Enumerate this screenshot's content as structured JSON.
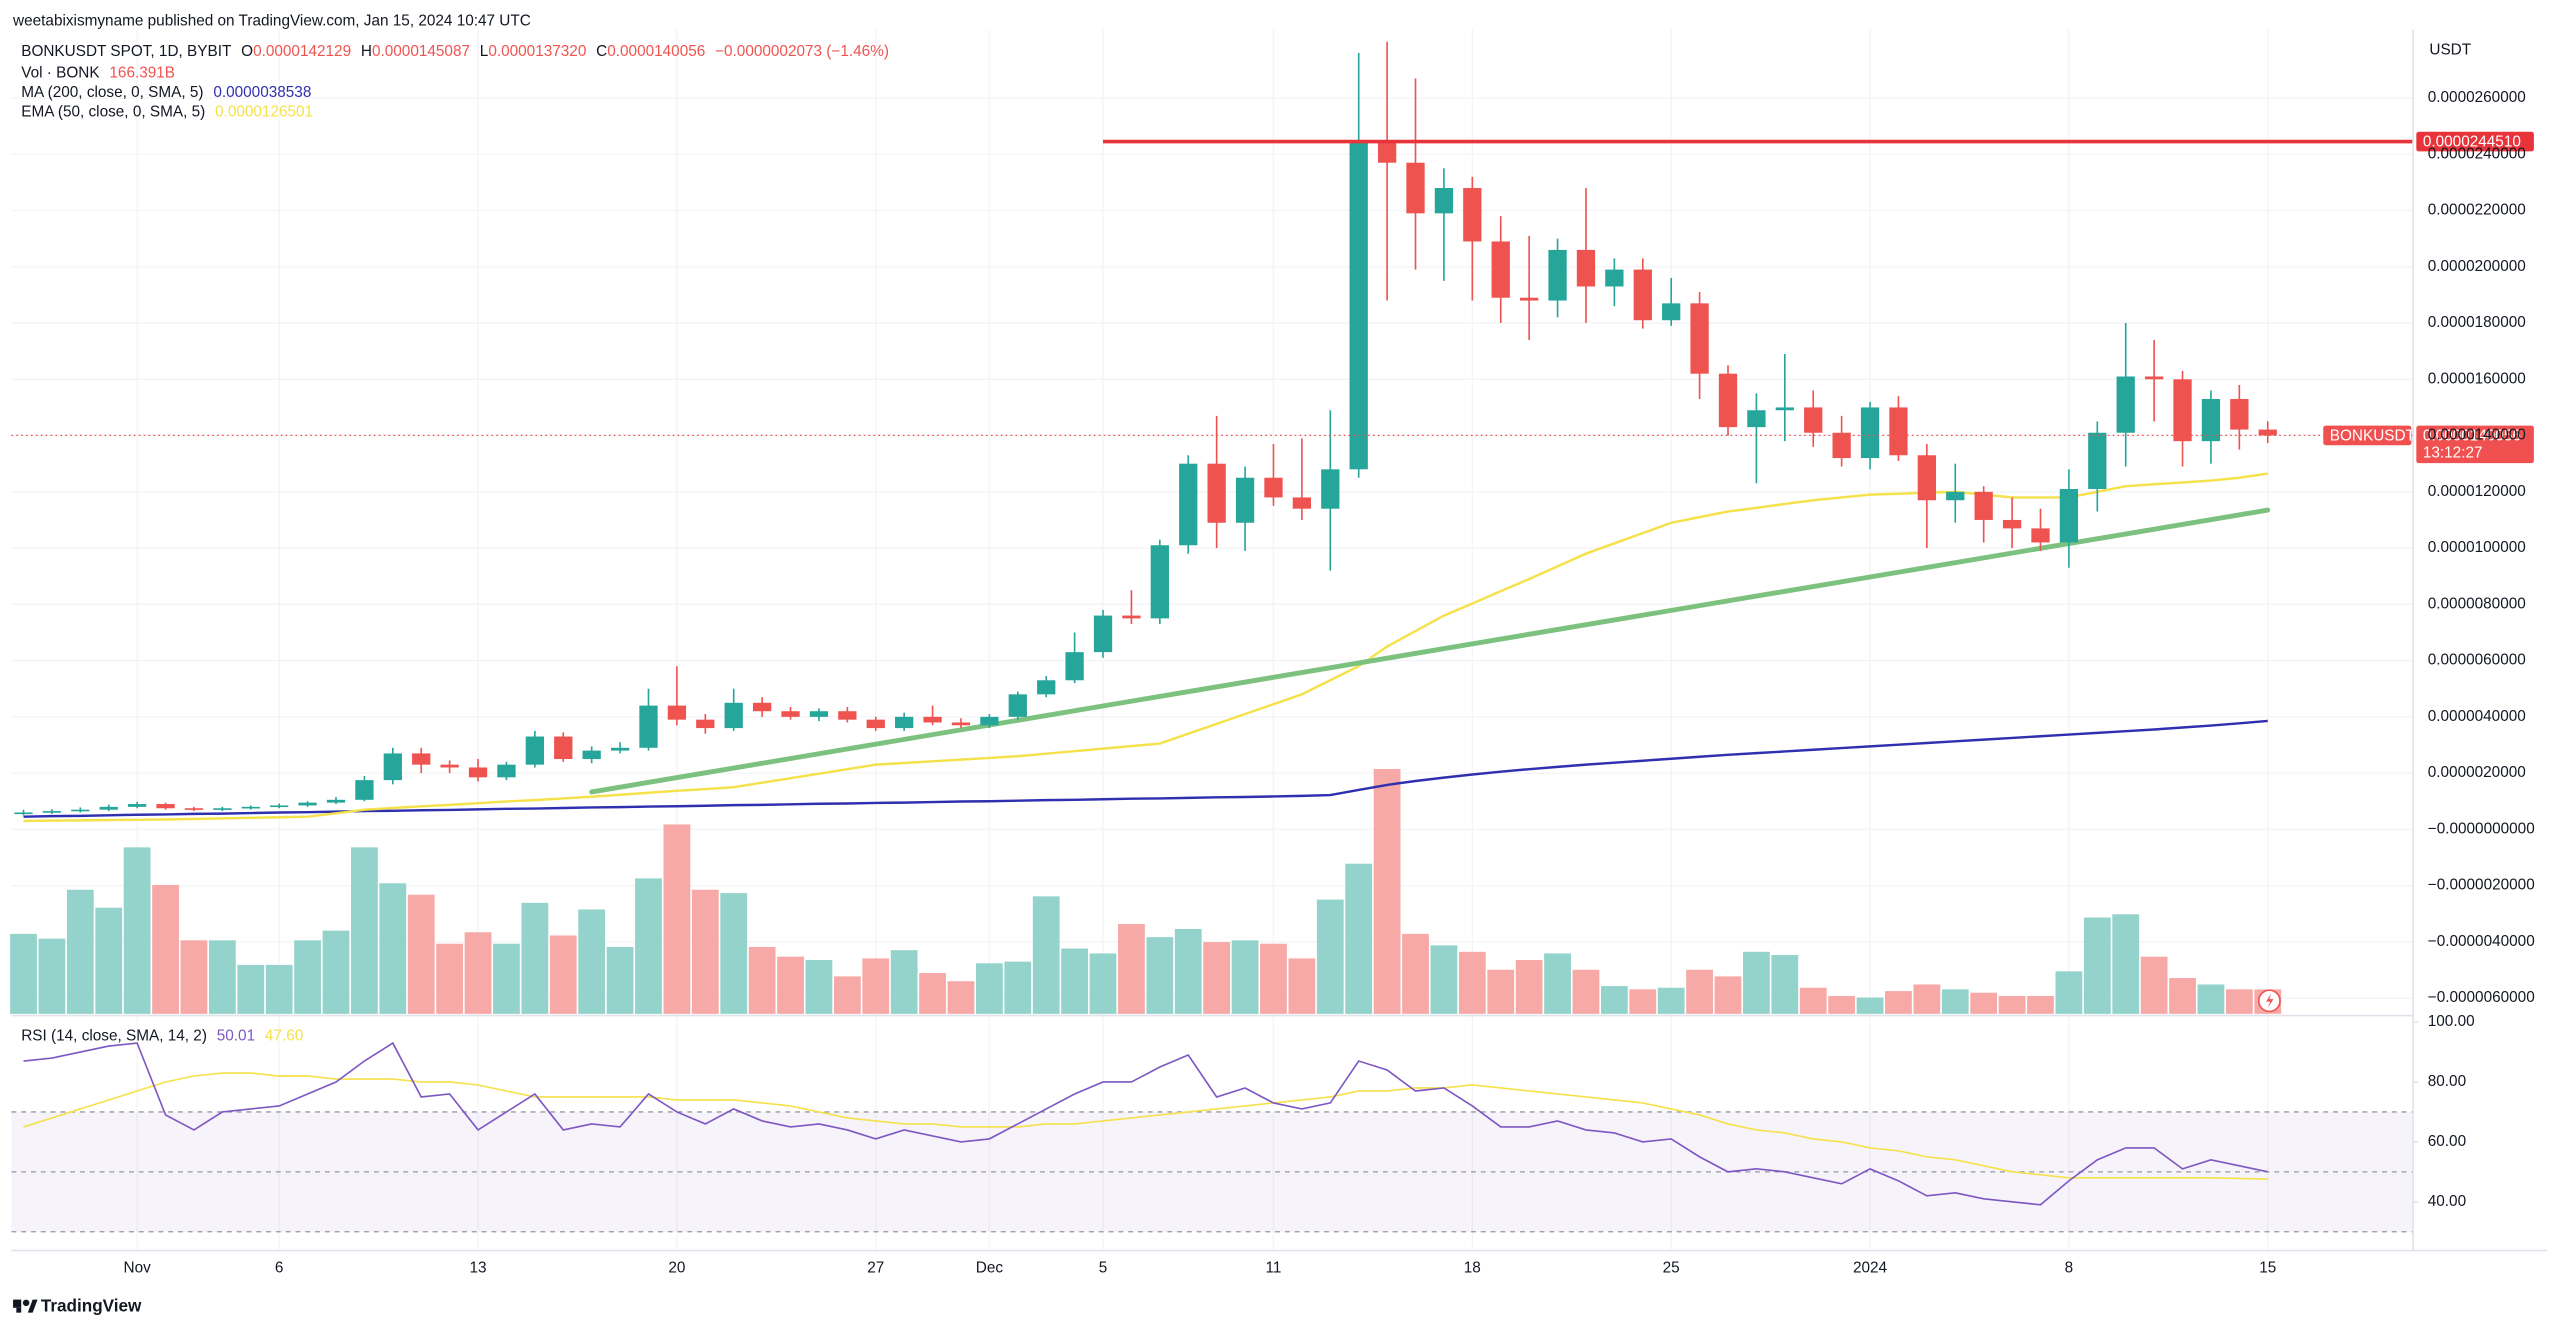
{
  "header": {
    "publisher": "weetabixismyname published on TradingView.com, Jan 15, 2024 10:47 UTC"
  },
  "footer": {
    "brand": "TradingView"
  },
  "chart_data": [
    {
      "type": "candlestick",
      "symbol": "BONKUSDT SPOT, 1D, BYBIT",
      "ohlc_legend": [
        [
          "O",
          "0.0000142129"
        ],
        [
          "H",
          "0.0000145087"
        ],
        [
          "L",
          "0.0000137320"
        ],
        [
          "C",
          "0.0000140056"
        ]
      ],
      "change_label": "−0.0000002073 (−1.46%)",
      "currency": "USDT",
      "categories": [
        null,
        null,
        null,
        null,
        "Nov",
        null,
        null,
        null,
        null,
        "6",
        null,
        null,
        null,
        null,
        null,
        null,
        "13",
        null,
        null,
        null,
        null,
        null,
        null,
        "20",
        null,
        null,
        null,
        null,
        null,
        null,
        "27",
        null,
        null,
        null,
        "Dec",
        null,
        null,
        null,
        "5",
        null,
        null,
        null,
        null,
        null,
        "11",
        null,
        null,
        null,
        null,
        null,
        null,
        "18",
        null,
        null,
        null,
        null,
        null,
        null,
        "25",
        null,
        null,
        null,
        null,
        null,
        null,
        "2024",
        null,
        null,
        null,
        null,
        null,
        null,
        "8",
        null,
        null,
        null,
        null,
        null,
        null,
        "15"
      ],
      "open": [
        5.5e-07,
        6e-07,
        6.5e-07,
        7e-07,
        8e-07,
        9e-07,
        7.5e-07,
        7e-07,
        7.5e-07,
        8e-07,
        8.5e-07,
        9.5e-07,
        1.05e-06,
        1.75e-06,
        2.7e-06,
        2.3e-06,
        2.2e-06,
        1.85e-06,
        2.3e-06,
        3.3e-06,
        2.5e-06,
        2.8e-06,
        2.9e-06,
        4.4e-06,
        3.9e-06,
        3.6e-06,
        4.5e-06,
        4.2e-06,
        4e-06,
        4.2e-06,
        3.9e-06,
        3.6e-06,
        4e-06,
        3.8e-06,
        3.7e-06,
        4e-06,
        4.8e-06,
        5.3e-06,
        6.3e-06,
        7.6e-06,
        7.5e-06,
        1.01e-05,
        1.3e-05,
        1.09e-05,
        1.25e-05,
        1.18e-05,
        1.14e-05,
        1.28e-05,
        2.44e-05,
        2.37e-05,
        2.19e-05,
        2.28e-05,
        2.09e-05,
        1.89e-05,
        1.88e-05,
        2.06e-05,
        1.93e-05,
        1.99e-05,
        1.81e-05,
        1.87e-05,
        1.62e-05,
        1.43e-05,
        1.49e-05,
        1.5e-05,
        1.41e-05,
        1.32e-05,
        1.5e-05,
        1.33e-05,
        1.17e-05,
        1.2e-05,
        1.1e-05,
        1.07e-05,
        1.02e-05,
        1.21e-05,
        1.41e-05,
        1.61e-05,
        1.6e-05,
        1.38e-05,
        1.53e-05,
        1.42129e-05
      ],
      "high": [
        7e-07,
        7.2e-07,
        7.8e-07,
        8.8e-07,
        9.8e-07,
        9.5e-07,
        8e-07,
        8e-07,
        8.5e-07,
        9.2e-07,
        1e-06,
        1.15e-06,
        1.9e-06,
        2.9e-06,
        2.9e-06,
        2.45e-06,
        2.5e-06,
        2.4e-06,
        3.5e-06,
        3.45e-06,
        2.95e-06,
        3.1e-06,
        5e-06,
        5.8e-06,
        4.1e-06,
        5e-06,
        4.7e-06,
        4.35e-06,
        4.3e-06,
        4.35e-06,
        4e-06,
        4.15e-06,
        4.4e-06,
        3.95e-06,
        4.1e-06,
        4.9e-06,
        5.45e-06,
        7e-06,
        7.8e-06,
        8.5e-06,
        1.03e-05,
        1.33e-05,
        1.47e-05,
        1.29e-05,
        1.37e-05,
        1.39e-05,
        1.49e-05,
        2.76e-05,
        2.8e-05,
        2.67e-05,
        2.35e-05,
        2.32e-05,
        2.18e-05,
        2.11e-05,
        2.1e-05,
        2.28e-05,
        2.03e-05,
        2.03e-05,
        1.96e-05,
        1.91e-05,
        1.65e-05,
        1.55e-05,
        1.69e-05,
        1.56e-05,
        1.47e-05,
        1.52e-05,
        1.54e-05,
        1.37e-05,
        1.3e-05,
        1.22e-05,
        1.18e-05,
        1.14e-05,
        1.28e-05,
        1.45e-05,
        1.8e-05,
        1.74e-05,
        1.63e-05,
        1.56e-05,
        1.58e-05,
        1.45087e-05
      ],
      "low": [
        5e-07,
        5.5e-07,
        6e-07,
        6.5e-07,
        7.5e-07,
        7e-07,
        6.5e-07,
        6.5e-07,
        7e-07,
        7.5e-07,
        8e-07,
        9e-07,
        1e-06,
        1.6e-06,
        2e-06,
        2e-06,
        1.7e-06,
        1.75e-06,
        2.2e-06,
        2.4e-06,
        2.35e-06,
        2.7e-06,
        2.8e-06,
        3.7e-06,
        3.4e-06,
        3.5e-06,
        4e-06,
        3.9e-06,
        3.85e-06,
        3.8e-06,
        3.5e-06,
        3.5e-06,
        3.7e-06,
        3.6e-06,
        3.6e-06,
        3.9e-06,
        4.7e-06,
        5.2e-06,
        6.1e-06,
        7.3e-06,
        7.3e-06,
        9.8e-06,
        1e-05,
        9.9e-06,
        1.15e-05,
        1.1e-05,
        9.2e-06,
        1.25e-05,
        1.88e-05,
        1.99e-05,
        1.95e-05,
        1.88e-05,
        1.8e-05,
        1.74e-05,
        1.82e-05,
        1.8e-05,
        1.86e-05,
        1.78e-05,
        1.79e-05,
        1.53e-05,
        1.4e-05,
        1.23e-05,
        1.38e-05,
        1.36e-05,
        1.29e-05,
        1.28e-05,
        1.31e-05,
        1e-05,
        1.09e-05,
        1.02e-05,
        1e-05,
        9.9e-06,
        9.3e-06,
        1.13e-05,
        1.29e-05,
        1.45e-05,
        1.29e-05,
        1.3e-05,
        1.35e-05,
        1.3732e-05
      ],
      "close": [
        6e-07,
        6.5e-07,
        7e-07,
        8e-07,
        9e-07,
        7.5e-07,
        7e-07,
        7.5e-07,
        8e-07,
        8.5e-07,
        9.5e-07,
        1.05e-06,
        1.75e-06,
        2.7e-06,
        2.3e-06,
        2.2e-06,
        1.85e-06,
        2.3e-06,
        3.3e-06,
        2.5e-06,
        2.8e-06,
        2.9e-06,
        4.4e-06,
        3.9e-06,
        3.6e-06,
        4.5e-06,
        4.2e-06,
        4e-06,
        4.2e-06,
        3.9e-06,
        3.6e-06,
        4e-06,
        3.8e-06,
        3.7e-06,
        4e-06,
        4.8e-06,
        5.3e-06,
        6.3e-06,
        7.6e-06,
        7.5e-06,
        1.01e-05,
        1.3e-05,
        1.09e-05,
        1.25e-05,
        1.18e-05,
        1.14e-05,
        1.28e-05,
        2.44e-05,
        2.37e-05,
        2.19e-05,
        2.28e-05,
        2.09e-05,
        1.89e-05,
        1.88e-05,
        2.06e-05,
        1.93e-05,
        1.99e-05,
        1.81e-05,
        1.87e-05,
        1.62e-05,
        1.43e-05,
        1.49e-05,
        1.5e-05,
        1.41e-05,
        1.32e-05,
        1.5e-05,
        1.33e-05,
        1.17e-05,
        1.2e-05,
        1.1e-05,
        1.07e-05,
        1.02e-05,
        1.21e-05,
        1.41e-05,
        1.61e-05,
        1.6e-05,
        1.38e-05,
        1.53e-05,
        1.42129e-05,
        1.40056e-05
      ],
      "up_color": "#26a69a",
      "down_color": "#ef5350",
      "volume": {
        "name": "Vol · BONK",
        "last_label": "166.391B",
        "up_color": "#94d3cb",
        "down_color": "#f7a9a7",
        "values": [
          544,
          511,
          844,
          722,
          1132,
          877,
          500,
          500,
          333,
          333,
          500,
          566,
          1132,
          888,
          810,
          477,
          555,
          477,
          755,
          533,
          710,
          455,
          921,
          1288,
          844,
          821,
          455,
          389,
          366,
          255,
          377,
          433,
          278,
          222,
          344,
          355,
          799,
          444,
          411,
          611,
          522,
          577,
          488,
          500,
          477,
          377,
          777,
          1021,
          1665,
          544,
          466,
          422,
          300,
          366,
          411,
          300,
          189,
          167,
          178,
          300,
          255,
          422,
          400,
          178,
          122,
          111,
          155,
          200,
          167,
          144,
          122,
          122,
          289,
          655,
          677,
          389,
          244,
          200,
          167,
          166.391
        ]
      },
      "series": [
        {
          "name": "MA (200, close, 0, SMA, 5)",
          "color": "#2f2fb0",
          "last_label": "0.0000038538",
          "values": [
            4.5e-07,
            4.7e-07,
            4.8e-07,
            5e-07,
            5.2e-07,
            5.3e-07,
            5.5e-07,
            5.6e-07,
            5.8e-07,
            6e-07,
            6.1e-07,
            6.3e-07,
            6.5e-07,
            6.6e-07,
            6.8e-07,
            6.9e-07,
            7.1e-07,
            7.3e-07,
            7.4e-07,
            7.6e-07,
            7.8e-07,
            7.9e-07,
            8.1e-07,
            8.2e-07,
            8.4e-07,
            8.6e-07,
            8.7e-07,
            8.9e-07,
            9.1e-07,
            9.2e-07,
            9.4e-07,
            9.5e-07,
            9.7e-07,
            9.9e-07,
            1e-06,
            1.02e-06,
            1.04e-06,
            1.05e-06,
            1.07e-06,
            1.09e-06,
            1.1e-06,
            1.12e-06,
            1.14e-06,
            1.15e-06,
            1.17e-06,
            1.19e-06,
            1.22e-06,
            1.4e-06,
            1.58e-06,
            1.72e-06,
            1.84e-06,
            1.95e-06,
            2.05e-06,
            2.14e-06,
            2.22e-06,
            2.3e-06,
            2.37e-06,
            2.44e-06,
            2.51e-06,
            2.58e-06,
            2.65e-06,
            2.71e-06,
            2.77e-06,
            2.83e-06,
            2.89e-06,
            2.95e-06,
            3.01e-06,
            3.07e-06,
            3.13e-06,
            3.19e-06,
            3.25e-06,
            3.31e-06,
            3.37e-06,
            3.43e-06,
            3.49e-06,
            3.55e-06,
            3.62e-06,
            3.69e-06,
            3.77e-06,
            3.8538e-06
          ]
        },
        {
          "name": "EMA (50, close, 0, SMA, 5)",
          "color": "#f5e14a",
          "last_label": "0.0000126501",
          "values": [
            3e-07,
            3.1e-07,
            3.2e-07,
            3.3e-07,
            3.4e-07,
            3.5e-07,
            3.7e-07,
            3.9e-07,
            4.1e-07,
            4.3e-07,
            4.5e-07,
            5.7e-07,
            7e-07,
            7.6e-07,
            8.2e-07,
            8.7e-07,
            9.3e-07,
            9.9e-07,
            1.04e-06,
            1.1e-06,
            1.16e-06,
            1.23e-06,
            1.3e-06,
            1.37e-06,
            1.43e-06,
            1.5e-06,
            1.66e-06,
            1.82e-06,
            1.98e-06,
            2.14e-06,
            2.3e-06,
            2.36e-06,
            2.42e-06,
            2.48e-06,
            2.54e-06,
            2.6e-06,
            2.69e-06,
            2.78e-06,
            2.87e-06,
            2.96e-06,
            3.05e-06,
            3.4e-06,
            3.75e-06,
            4.1e-06,
            4.45e-06,
            4.8e-06,
            5.3e-06,
            5.8e-06,
            6.5e-06,
            7.05e-06,
            7.6e-06,
            8.03e-06,
            8.47e-06,
            8.9e-06,
            9.35e-06,
            9.8e-06,
            1.017e-05,
            1.053e-05,
            1.09e-05,
            1.11e-05,
            1.13e-05,
            1.143e-05,
            1.157e-05,
            1.17e-05,
            1.18e-05,
            1.19e-05,
            1.193e-05,
            1.197e-05,
            1.2e-05,
            1.19e-05,
            1.18e-05,
            1.18e-05,
            1.18e-05,
            1.2e-05,
            1.22e-05,
            1.227e-05,
            1.233e-05,
            1.24e-05,
            1.25e-05,
            1.26501e-05
          ]
        }
      ],
      "drawings": [
        {
          "kind": "trend",
          "color": "#7cc27e",
          "x": [
            20,
            79
          ],
          "y": [
            1.33e-06,
            1.135e-05
          ]
        },
        {
          "kind": "horizontal",
          "color": "#e8333a",
          "x": 38,
          "y": 2.4451e-05,
          "label": "0.0000244510"
        }
      ],
      "price_line": {
        "name": "BONKUSDT",
        "label": "0.0000140056",
        "countdown": "13:12:27",
        "color": "#f0504f"
      },
      "ylim": [
        -6.56e-06,
        2.844e-05
      ],
      "yticks": [
        {
          "value": 2.6e-05,
          "label": "0.0000260000"
        },
        {
          "value": 2.4e-05,
          "label": "0.0000240000"
        },
        {
          "value": 2.2e-05,
          "label": "0.0000220000"
        },
        {
          "value": 2e-05,
          "label": "0.0000200000"
        },
        {
          "value": 1.8e-05,
          "label": "0.0000180000"
        },
        {
          "value": 1.6e-05,
          "label": "0.0000160000"
        },
        {
          "value": 1.4e-05,
          "label": "0.0000140000"
        },
        {
          "value": 1.2e-05,
          "label": "0.0000120000"
        },
        {
          "value": 1e-05,
          "label": "0.0000100000"
        },
        {
          "value": 8e-06,
          "label": "0.0000080000"
        },
        {
          "value": 6e-06,
          "label": "0.0000060000"
        },
        {
          "value": 4e-06,
          "label": "0.0000040000"
        },
        {
          "value": 2e-06,
          "label": "0.0000020000"
        },
        {
          "value": 0,
          "label": "−0.0000000000"
        },
        {
          "value": -2e-06,
          "label": "−0.0000020000"
        },
        {
          "value": -4e-06,
          "label": "−0.0000040000"
        },
        {
          "value": -6e-06,
          "label": "−0.0000060000"
        }
      ],
      "grid": true
    },
    {
      "type": "line",
      "title": "RSI (14, close, SMA, 14, 2)",
      "series": [
        {
          "color": "#7e57c2",
          "last_label": "50.01",
          "values": [
            87,
            88,
            90,
            92,
            93,
            69,
            64,
            70,
            71,
            72,
            76,
            80,
            87,
            93,
            75,
            76,
            64,
            70,
            76,
            64,
            66,
            65,
            76,
            70,
            66,
            71,
            67,
            65,
            66,
            64,
            61,
            64,
            62,
            60,
            61,
            66,
            71,
            76,
            80,
            80,
            85,
            89,
            75,
            78,
            73,
            71,
            73,
            87,
            84,
            77,
            78,
            72,
            65,
            65,
            67,
            64,
            63,
            60,
            61,
            55,
            50,
            51,
            50,
            48,
            46,
            51,
            47,
            42,
            43,
            41,
            40,
            39,
            47,
            54,
            58,
            58,
            51,
            54,
            52,
            50.01
          ]
        },
        {
          "color": "#f5e14a",
          "last_label": "47.60",
          "values": [
            65,
            68,
            71,
            74,
            77,
            80,
            82,
            83,
            83,
            82,
            82,
            81,
            81,
            81,
            80,
            80,
            79,
            77,
            75,
            75,
            75,
            75,
            75,
            74,
            74,
            74,
            73,
            72,
            70,
            68,
            67,
            66,
            66,
            65,
            65,
            65,
            66,
            66,
            67,
            68,
            69,
            70,
            71,
            72,
            73,
            74,
            75,
            77,
            77,
            78,
            78,
            79,
            78,
            77,
            76,
            75,
            74,
            73,
            71,
            69,
            66,
            64,
            63,
            61,
            60,
            58,
            57,
            55,
            54,
            52,
            50,
            49,
            48,
            48,
            48,
            48,
            48,
            48,
            47.8,
            47.6
          ]
        }
      ],
      "bands": [
        70,
        50,
        30
      ],
      "band_color": "#7e57c2",
      "ylim": [
        23.7,
        102.2
      ],
      "yticks": [
        {
          "value": 100,
          "label": "100.00"
        },
        {
          "value": 80,
          "label": "80.00"
        },
        {
          "value": 60,
          "label": "60.00"
        },
        {
          "value": 40,
          "label": "40.00"
        }
      ]
    }
  ]
}
